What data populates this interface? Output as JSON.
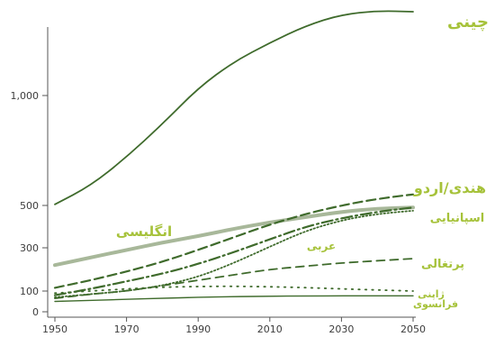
{
  "chart_data": {
    "type": "line",
    "title": "",
    "xlabel": "",
    "ylabel": "",
    "x": [
      1950,
      1960,
      1970,
      1980,
      1990,
      2000,
      2010,
      2020,
      2030,
      2040,
      2050
    ],
    "xticks": [
      "1950",
      "1970",
      "1990",
      "2010",
      "2030",
      "2050"
    ],
    "yticks": [
      {
        "value": 0,
        "label": "0"
      },
      {
        "value": 100,
        "label": "100"
      },
      {
        "value": 300,
        "label": "300"
      },
      {
        "value": 500,
        "label": "500"
      },
      {
        "value": 1000,
        "label": "1,000"
      }
    ],
    "xlim": [
      1950,
      2050
    ],
    "ylim": [
      0,
      1450
    ],
    "grid": false,
    "legend": "none",
    "series": [
      {
        "name": "چینی",
        "color": "#3f6b2c",
        "style": "solid",
        "values": [
          505,
          590,
          720,
          870,
          1040,
          1180,
          1280,
          1370,
          1430,
          1450,
          1445
        ]
      },
      {
        "name": "انگلیسی",
        "color": "#a8b89a",
        "style": "solid-thick",
        "values": [
          220,
          255,
          290,
          325,
          355,
          390,
          420,
          445,
          470,
          485,
          490
        ]
      },
      {
        "name": "هندی/اردو",
        "color": "#3f6b2c",
        "style": "dash",
        "values": [
          115,
          150,
          190,
          235,
          290,
          350,
          410,
          460,
          500,
          530,
          550
        ]
      },
      {
        "name": "اسپانیایی",
        "color": "#3f6b2c",
        "style": "dashdot",
        "values": [
          80,
          110,
          145,
          180,
          225,
          280,
          340,
          400,
          440,
          470,
          490
        ]
      },
      {
        "name": "عربی",
        "color": "#3f6b2c",
        "style": "dot",
        "values": [
          70,
          85,
          100,
          125,
          165,
          230,
          305,
          380,
          430,
          460,
          475
        ]
      },
      {
        "name": "پرتغالی",
        "color": "#3f6b2c",
        "style": "dash-long",
        "values": [
          65,
          85,
          100,
          125,
          150,
          175,
          200,
          215,
          230,
          240,
          250
        ]
      },
      {
        "name": "ژاپنی",
        "color": "#3f6b2c",
        "style": "dot-sparse",
        "values": [
          90,
          100,
          110,
          118,
          121,
          122,
          120,
          116,
          110,
          105,
          100
        ]
      },
      {
        "name": "فرانسوی",
        "color": "#3f6b2c",
        "style": "solid-thin",
        "values": [
          50,
          55,
          60,
          65,
          70,
          73,
          75,
          76,
          77,
          77,
          77
        ]
      }
    ]
  }
}
